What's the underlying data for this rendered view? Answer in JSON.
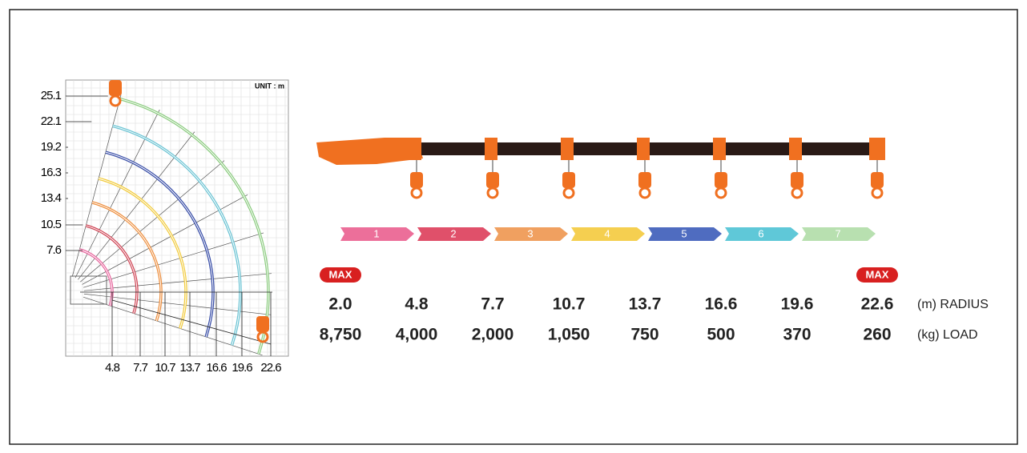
{
  "working_range": {
    "unit": "UNIT : m",
    "heights": [
      "25.1",
      "22.1",
      "19.2",
      "16.3",
      "13.4",
      "10.5",
      "7.6"
    ],
    "radii": [
      "4.8",
      "7.7",
      "10.7",
      "13.7",
      "16.6",
      "19.6",
      "22.6"
    ]
  },
  "boom_sections": [
    "1",
    "2",
    "3",
    "4",
    "5",
    "6",
    "7"
  ],
  "table": {
    "max_labels": [
      "MAX",
      "MAX"
    ],
    "radius": {
      "values": [
        "2.0",
        "4.8",
        "7.7",
        "10.7",
        "13.7",
        "16.6",
        "19.6",
        "22.6"
      ],
      "label": "(m) RADIUS"
    },
    "load": {
      "values": [
        "8,750",
        "4,000",
        "2,000",
        "1,050",
        "750",
        "500",
        "370",
        "260"
      ],
      "label": "(kg) LOAD"
    }
  }
}
